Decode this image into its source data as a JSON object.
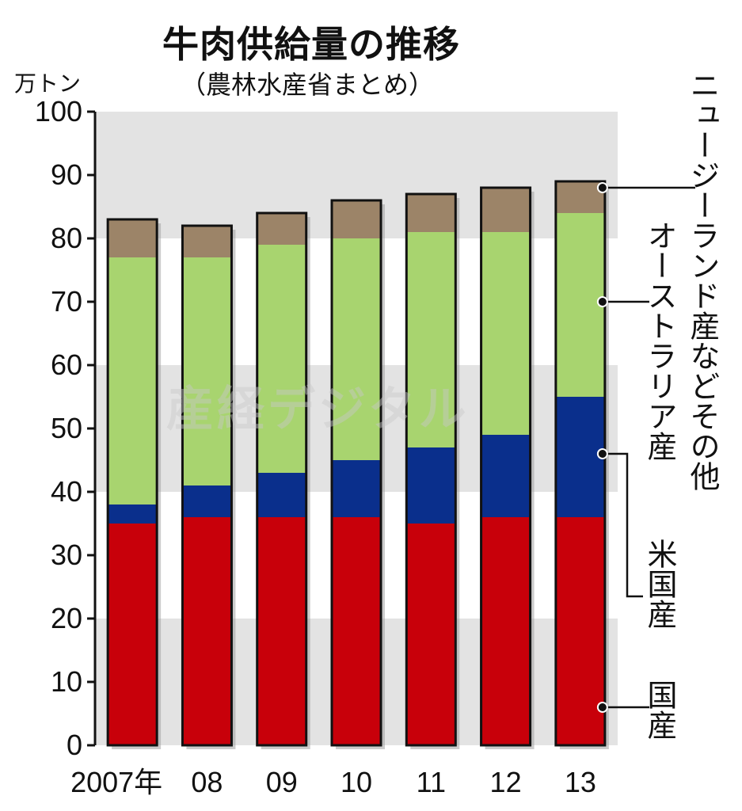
{
  "chart_data": {
    "type": "bar",
    "stacked": true,
    "title": "牛肉供給量の推移",
    "subtitle": "（農林水産省まとめ）",
    "ylabel": "万トン",
    "xlabel": "",
    "ylim": [
      0,
      100
    ],
    "yticks": [
      "0",
      "10",
      "20",
      "30",
      "40",
      "50",
      "60",
      "70",
      "80",
      "90",
      "100"
    ],
    "categories": [
      "2007年",
      "08",
      "09",
      "10",
      "11",
      "12",
      "13"
    ],
    "grid": "alternating horizontal bands",
    "legend": "right, vertical labels with leader lines",
    "series": [
      {
        "name": "国産",
        "color": "#c8000a",
        "values": [
          35,
          36,
          36,
          36,
          35,
          36,
          36
        ]
      },
      {
        "name": "米国産",
        "color": "#0a2f8c",
        "values": [
          3,
          5,
          7,
          9,
          12,
          13,
          19
        ]
      },
      {
        "name": "オーストラリア産",
        "color": "#a8d46f",
        "values": [
          39,
          36,
          36,
          35,
          34,
          32,
          29
        ]
      },
      {
        "name": "ニュージーランド産などその他",
        "color": "#9c8468",
        "values": [
          6,
          5,
          5,
          6,
          6,
          7,
          5
        ]
      }
    ],
    "band_color": "#e3e3e3"
  },
  "watermark": "産経デジタル"
}
